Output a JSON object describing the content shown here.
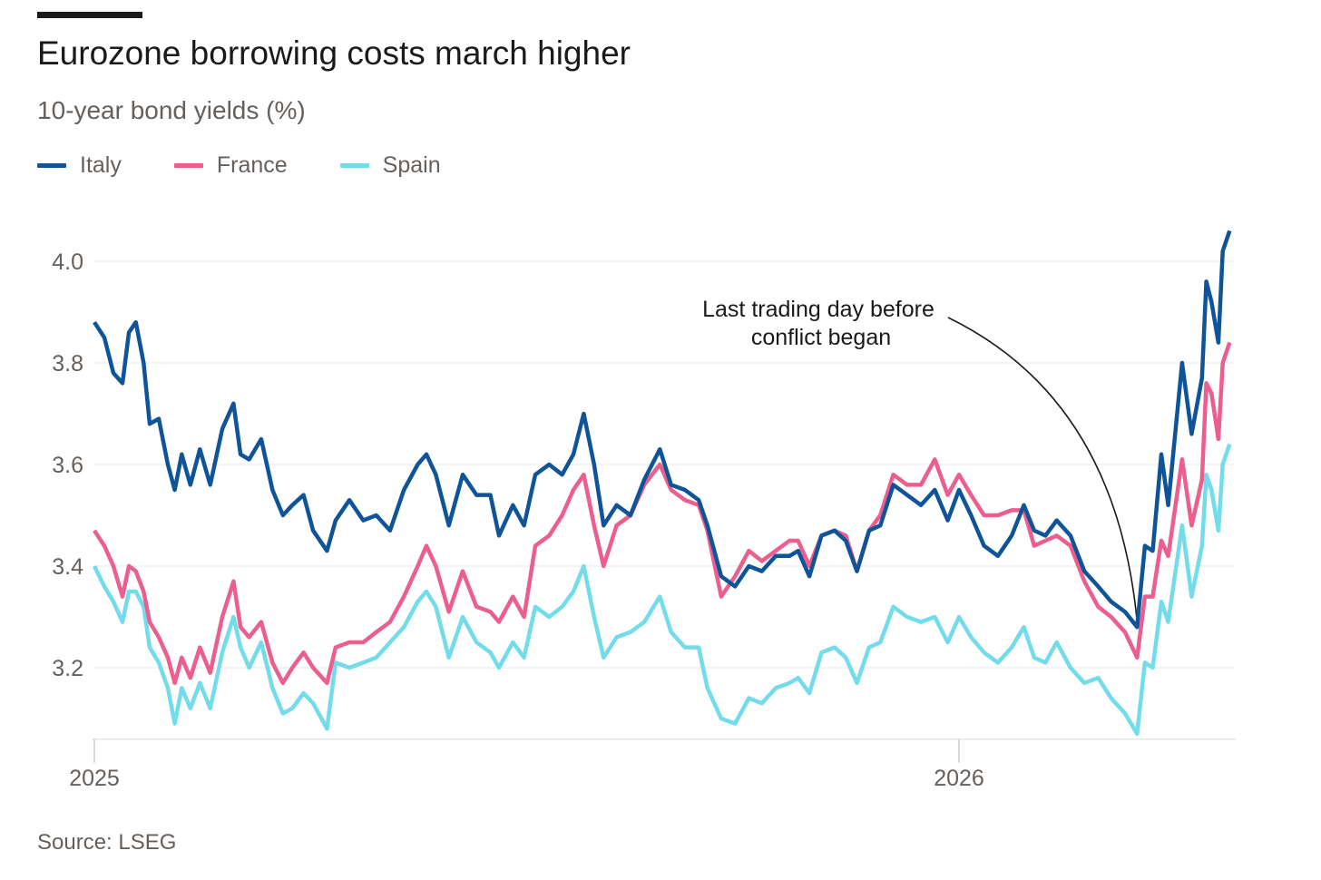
{
  "chart_data": {
    "type": "line",
    "title": "Eurozone borrowing costs march higher",
    "subtitle": "10-year bond yields (%)",
    "source": "Source: LSEG",
    "xlabel": "",
    "ylabel": "10-year bond yields (%)",
    "x_unit": "years since start of 2025",
    "xlim": [
      0,
      1.32
    ],
    "ylim": [
      3.07,
      4.08
    ],
    "y_ticks": [
      {
        "value": 3.2,
        "label": "3.2"
      },
      {
        "value": 3.4,
        "label": "3.4"
      },
      {
        "value": 3.6,
        "label": "3.6"
      },
      {
        "value": 3.8,
        "label": "3.8"
      },
      {
        "value": 4.0,
        "label": "4.0"
      }
    ],
    "x_ticks": [
      {
        "value": 0,
        "label": "2025"
      },
      {
        "value": 1,
        "label": "2026"
      }
    ],
    "grid": true,
    "legend_position": "top-left",
    "annotation": {
      "lines": [
        "Last trading day before",
        "conflict began"
      ],
      "x": 1.206
    },
    "x": [
      0,
      0.0115,
      0.022,
      0.0325,
      0.04,
      0.048,
      0.057,
      0.064,
      0.0745,
      0.085,
      0.093,
      0.101,
      0.111,
      0.122,
      0.134,
      0.148,
      0.161,
      0.169,
      0.179,
      0.193,
      0.206,
      0.218,
      0.229,
      0.242,
      0.253,
      0.269,
      0.279,
      0.295,
      0.311,
      0.326,
      0.342,
      0.358,
      0.374,
      0.384,
      0.395,
      0.41,
      0.426,
      0.442,
      0.458,
      0.468,
      0.484,
      0.497,
      0.51,
      0.526,
      0.541,
      0.554,
      0.566,
      0.578,
      0.589,
      0.604,
      0.62,
      0.636,
      0.654,
      0.667,
      0.683,
      0.699,
      0.709,
      0.725,
      0.741,
      0.757,
      0.772,
      0.788,
      0.804,
      0.814,
      0.827,
      0.841,
      0.856,
      0.869,
      0.882,
      0.896,
      0.909,
      0.924,
      0.94,
      0.956,
      0.972,
      0.987,
      1.0,
      1.014,
      1.029,
      1.045,
      1.061,
      1.075,
      1.087,
      1.1,
      1.113,
      1.129,
      1.145,
      1.161,
      1.176,
      1.192,
      1.206,
      1.215,
      1.224,
      1.234,
      1.242,
      1.258,
      1.269,
      1.281,
      1.286,
      1.292,
      1.3,
      1.305,
      1.313
    ],
    "series": [
      {
        "name": "Italy",
        "color": "#0f5499",
        "values": [
          3.88,
          3.85,
          3.78,
          3.76,
          3.86,
          3.88,
          3.8,
          3.68,
          3.69,
          3.6,
          3.55,
          3.62,
          3.56,
          3.63,
          3.56,
          3.67,
          3.72,
          3.62,
          3.61,
          3.65,
          3.55,
          3.5,
          3.52,
          3.54,
          3.47,
          3.43,
          3.49,
          3.53,
          3.49,
          3.5,
          3.47,
          3.55,
          3.6,
          3.62,
          3.58,
          3.48,
          3.58,
          3.54,
          3.54,
          3.46,
          3.52,
          3.48,
          3.58,
          3.6,
          3.58,
          3.62,
          3.7,
          3.6,
          3.48,
          3.52,
          3.5,
          3.57,
          3.63,
          3.56,
          3.55,
          3.53,
          3.48,
          3.38,
          3.36,
          3.4,
          3.39,
          3.42,
          3.42,
          3.43,
          3.38,
          3.46,
          3.47,
          3.45,
          3.39,
          3.47,
          3.48,
          3.56,
          3.54,
          3.52,
          3.55,
          3.49,
          3.55,
          3.5,
          3.44,
          3.42,
          3.46,
          3.52,
          3.47,
          3.46,
          3.49,
          3.46,
          3.39,
          3.36,
          3.33,
          3.31,
          3.28,
          3.44,
          3.43,
          3.62,
          3.52,
          3.8,
          3.66,
          3.77,
          3.96,
          3.92,
          3.84,
          4.02,
          4.06
        ]
      },
      {
        "name": "France",
        "color": "#eb5e8d",
        "values": [
          3.47,
          3.44,
          3.4,
          3.34,
          3.4,
          3.39,
          3.35,
          3.29,
          3.26,
          3.22,
          3.17,
          3.22,
          3.18,
          3.24,
          3.19,
          3.3,
          3.37,
          3.28,
          3.26,
          3.29,
          3.21,
          3.17,
          3.2,
          3.23,
          3.2,
          3.17,
          3.24,
          3.25,
          3.25,
          3.27,
          3.29,
          3.34,
          3.4,
          3.44,
          3.4,
          3.31,
          3.39,
          3.32,
          3.31,
          3.29,
          3.34,
          3.3,
          3.44,
          3.46,
          3.5,
          3.55,
          3.58,
          3.48,
          3.4,
          3.48,
          3.5,
          3.56,
          3.6,
          3.55,
          3.53,
          3.52,
          3.47,
          3.34,
          3.38,
          3.43,
          3.41,
          3.43,
          3.45,
          3.45,
          3.4,
          3.46,
          3.47,
          3.46,
          3.39,
          3.47,
          3.5,
          3.58,
          3.56,
          3.56,
          3.61,
          3.54,
          3.58,
          3.54,
          3.5,
          3.5,
          3.51,
          3.51,
          3.44,
          3.45,
          3.46,
          3.44,
          3.37,
          3.32,
          3.3,
          3.27,
          3.22,
          3.34,
          3.34,
          3.45,
          3.42,
          3.61,
          3.48,
          3.57,
          3.76,
          3.74,
          3.65,
          3.8,
          3.84
        ]
      },
      {
        "name": "Spain",
        "color": "#72dceb",
        "values": [
          3.4,
          3.36,
          3.33,
          3.29,
          3.35,
          3.35,
          3.32,
          3.24,
          3.21,
          3.16,
          3.09,
          3.16,
          3.12,
          3.17,
          3.12,
          3.23,
          3.3,
          3.24,
          3.2,
          3.25,
          3.16,
          3.11,
          3.12,
          3.15,
          3.13,
          3.08,
          3.21,
          3.2,
          3.21,
          3.22,
          3.25,
          3.28,
          3.33,
          3.35,
          3.32,
          3.22,
          3.3,
          3.25,
          3.23,
          3.2,
          3.25,
          3.22,
          3.32,
          3.3,
          3.32,
          3.35,
          3.4,
          3.3,
          3.22,
          3.26,
          3.27,
          3.29,
          3.34,
          3.27,
          3.24,
          3.24,
          3.16,
          3.1,
          3.09,
          3.14,
          3.13,
          3.16,
          3.17,
          3.18,
          3.15,
          3.23,
          3.24,
          3.22,
          3.17,
          3.24,
          3.25,
          3.32,
          3.3,
          3.29,
          3.3,
          3.25,
          3.3,
          3.26,
          3.23,
          3.21,
          3.24,
          3.28,
          3.22,
          3.21,
          3.25,
          3.2,
          3.17,
          3.18,
          3.14,
          3.11,
          3.07,
          3.21,
          3.2,
          3.33,
          3.29,
          3.48,
          3.34,
          3.44,
          3.58,
          3.55,
          3.47,
          3.6,
          3.64
        ]
      }
    ]
  }
}
